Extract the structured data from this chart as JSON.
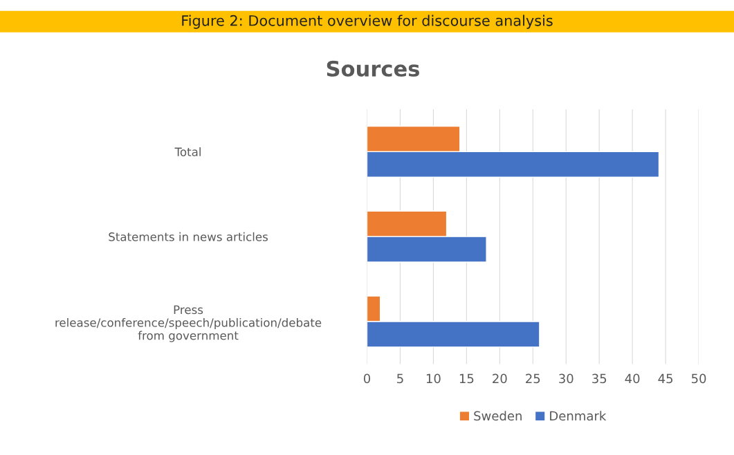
{
  "chart_data": {
    "type": "bar",
    "orientation": "horizontal",
    "title": "Figure 2: Document overview for discourse analysis",
    "subtitle": "Sources",
    "categories": [
      "Total",
      "Statements in news articles",
      "Press\nrelease/conference/speech/publication/debate\nfrom government"
    ],
    "series": [
      {
        "name": "Sweden",
        "color": "#ed7d31",
        "values": [
          14,
          12,
          2
        ]
      },
      {
        "name": "Denmark",
        "color": "#4472c4",
        "values": [
          44,
          18,
          26
        ]
      }
    ],
    "xlim": [
      0,
      50
    ],
    "xticks": [
      0,
      5,
      10,
      15,
      20,
      25,
      30,
      35,
      40,
      45,
      50
    ],
    "grid": "x",
    "legend": "bottom"
  }
}
